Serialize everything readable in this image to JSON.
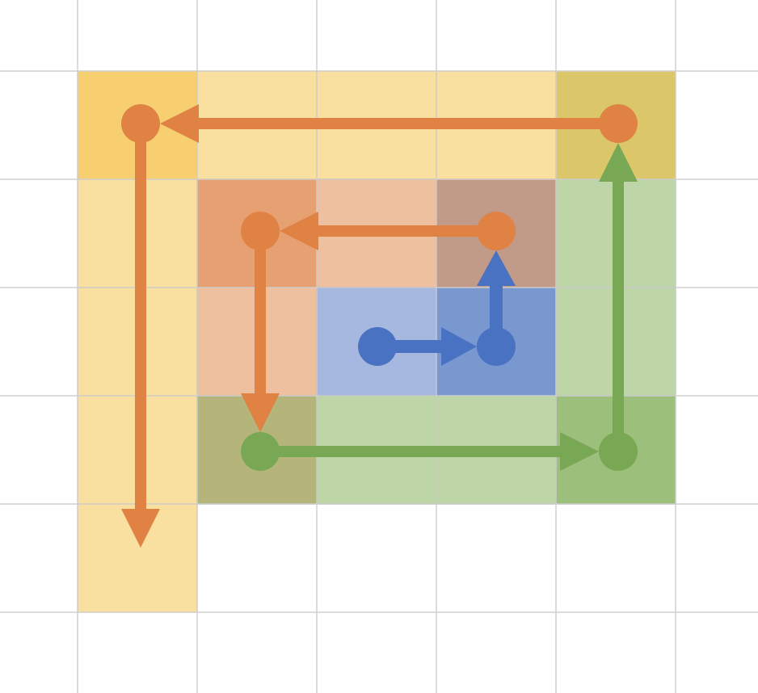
{
  "diagram": {
    "grid": {
      "columns": 7,
      "rows": 7,
      "gridline_color": "#d0d0d0"
    },
    "colors": {
      "yellow_fill": "#f9dfa0",
      "yellow_corner": "#f7cf70",
      "yellow_border": "#f0c24a",
      "olive_cell": "#dbc76a",
      "orange_fill": "#efc0a0",
      "orange_dark_cell": "#e6a071",
      "brown_cell": "#c19b88",
      "blue_fill": "#a6b8e0",
      "blue_dark_cell": "#7a98d0",
      "green_fill": "#bdd5a7",
      "green_dark_cell": "#9dbf7c",
      "olive_dark_cell": "#b4b47b",
      "orange_stroke": "#e08243",
      "blue_stroke": "#4a72c2",
      "green_stroke": "#78a853"
    },
    "paths": [
      {
        "name": "blue-spiral",
        "color": "blue",
        "steps": [
          [
            2,
            2
          ],
          [
            3,
            2
          ],
          [
            3,
            1
          ]
        ]
      },
      {
        "name": "orange-inner-spiral",
        "color": "orange",
        "steps": [
          [
            3,
            1
          ],
          [
            1,
            1
          ],
          [
            1,
            3
          ]
        ]
      },
      {
        "name": "green-spiral",
        "color": "green",
        "steps": [
          [
            1,
            3
          ],
          [
            4,
            3
          ],
          [
            4,
            0
          ]
        ]
      },
      {
        "name": "orange-outer-spiral",
        "color": "orange",
        "steps": [
          [
            4,
            0
          ],
          [
            0,
            0
          ],
          [
            0,
            4
          ]
        ]
      }
    ]
  }
}
